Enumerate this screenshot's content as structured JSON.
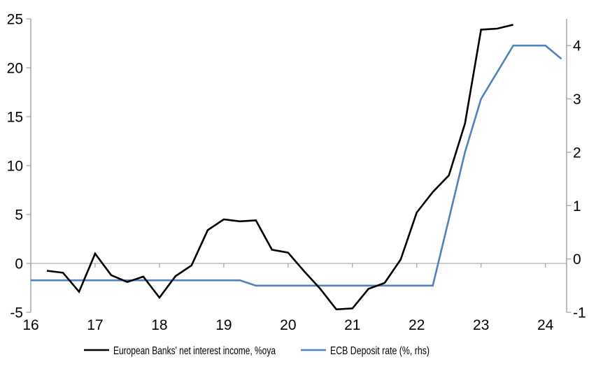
{
  "chart_data": {
    "type": "line",
    "title": "",
    "x_axis": {
      "range": [
        16,
        24.33
      ],
      "ticks": [
        16,
        17,
        18,
        19,
        20,
        21,
        22,
        23,
        24
      ],
      "tick_labels": [
        "16",
        "17",
        "18",
        "19",
        "20",
        "21",
        "22",
        "23",
        "24"
      ]
    },
    "y_axis_left": {
      "range": [
        -5,
        25
      ],
      "ticks": [
        -5,
        0,
        5,
        10,
        15,
        20,
        25
      ],
      "tick_labels": [
        "-5",
        "0",
        "5",
        "10",
        "15",
        "20",
        "25"
      ]
    },
    "y_axis_right": {
      "range": [
        -1,
        4.5
      ],
      "ticks": [
        -1,
        0,
        1,
        2,
        3,
        4
      ],
      "tick_labels": [
        "-1",
        "0",
        "1",
        "2",
        "3",
        "4"
      ]
    },
    "zero_gridline": true,
    "legend_position": "bottom",
    "series": [
      {
        "name": "European Banks' net interest income, %oya",
        "axis": "left",
        "color": "#000000",
        "frequency": "quarterly",
        "points": [
          [
            16.25,
            -0.75
          ],
          [
            16.5,
            -0.95
          ],
          [
            16.75,
            -2.9
          ],
          [
            17.0,
            1.0
          ],
          [
            17.25,
            -1.2
          ],
          [
            17.5,
            -1.9
          ],
          [
            17.75,
            -1.35
          ],
          [
            18.0,
            -3.5
          ],
          [
            18.25,
            -1.3
          ],
          [
            18.5,
            -0.2
          ],
          [
            18.75,
            3.4
          ],
          [
            19.0,
            4.5
          ],
          [
            19.25,
            4.3
          ],
          [
            19.5,
            4.4
          ],
          [
            19.75,
            1.4
          ],
          [
            20.0,
            1.1
          ],
          [
            20.25,
            -0.8
          ],
          [
            20.5,
            -2.6
          ],
          [
            20.75,
            -4.7
          ],
          [
            21.0,
            -4.6
          ],
          [
            21.25,
            -2.6
          ],
          [
            21.5,
            -2.0
          ],
          [
            21.75,
            0.4
          ],
          [
            22.0,
            5.2
          ],
          [
            22.25,
            7.3
          ],
          [
            22.5,
            9.0
          ],
          [
            22.75,
            14.3
          ],
          [
            23.0,
            23.9
          ],
          [
            23.25,
            24.0
          ],
          [
            23.5,
            24.4
          ]
        ]
      },
      {
        "name": "ECB Deposit rate (%, rhs)",
        "axis": "right",
        "color": "#4F81BD",
        "frequency": "breakpoints",
        "points": [
          [
            16.0,
            -0.4
          ],
          [
            19.25,
            -0.4
          ],
          [
            19.5,
            -0.5
          ],
          [
            22.25,
            -0.5
          ],
          [
            22.5,
            0.75
          ],
          [
            22.75,
            2.0
          ],
          [
            23.0,
            3.0
          ],
          [
            23.25,
            3.5
          ],
          [
            23.5,
            4.0
          ],
          [
            24.0,
            4.0
          ],
          [
            24.25,
            3.75
          ]
        ]
      }
    ]
  },
  "legend": {
    "items": [
      {
        "label": "European Banks' net interest income, %oya",
        "color": "#000000"
      },
      {
        "label": "ECB Deposit rate (%, rhs)",
        "color": "#4F81BD"
      }
    ]
  },
  "colors": {
    "axis": "#a6a6a6",
    "gridline": "#adadad",
    "label": "#000000",
    "background": "#ffffff"
  }
}
